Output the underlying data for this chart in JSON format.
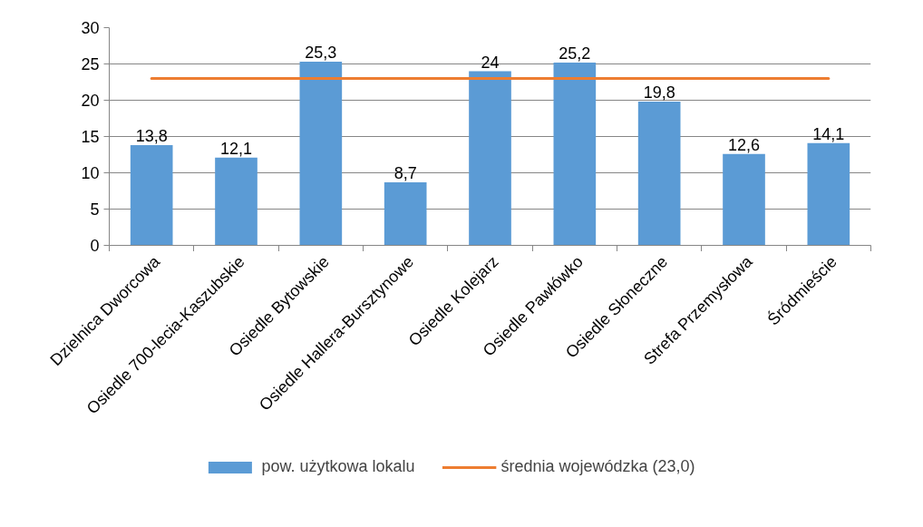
{
  "chart_data": {
    "type": "bar",
    "categories": [
      "Dzielnica Dworcowa",
      "Osiedle 700-lecia-Kaszubskie",
      "Osiedle Bytowskie",
      "Osiedle Hallera-Bursztynowe",
      "Osiedle Kolejarz",
      "Osiedle Pawłówko",
      "Osiedle Słoneczne",
      "Strefa Przemysłowa",
      "Śródmieście"
    ],
    "series": [
      {
        "name": "pow. użytkowa lokalu",
        "type": "bar",
        "color": "#5b9bd5",
        "values": [
          13.8,
          12.1,
          25.3,
          8.7,
          24,
          25.2,
          19.8,
          12.6,
          14.1
        ],
        "value_labels": [
          "13,8",
          "12,1",
          "25,3",
          "8,7",
          "24",
          "25,2",
          "19,8",
          "12,6",
          "14,1"
        ]
      },
      {
        "name": "średnia wojewódzka (23,0)",
        "type": "line",
        "color": "#ed7d31",
        "values": [
          23,
          23,
          23,
          23,
          23,
          23,
          23,
          23,
          23
        ]
      }
    ],
    "ylim": [
      0,
      30
    ],
    "yticks": [
      0,
      5,
      10,
      15,
      20,
      25,
      30
    ],
    "grid": "y",
    "legend": "bottom",
    "marker": "none",
    "line_style": "solid"
  }
}
